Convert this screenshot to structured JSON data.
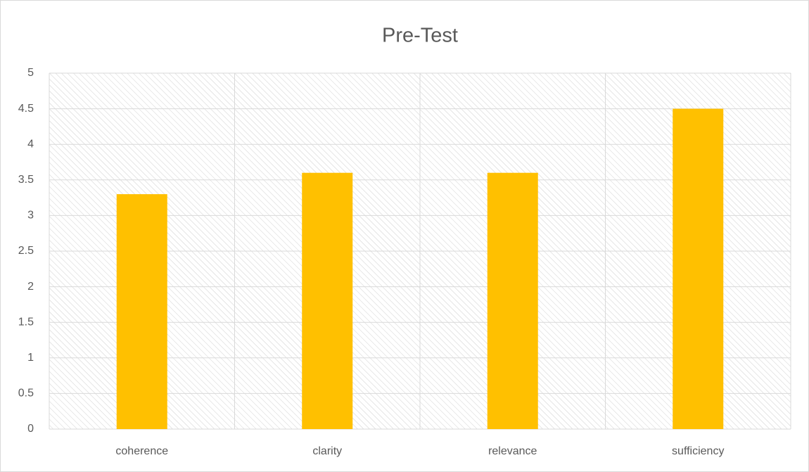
{
  "chart_data": {
    "type": "bar",
    "title": "Pre-Test",
    "categories": [
      "coherence",
      "clarity",
      "relevance",
      "sufficiency"
    ],
    "values": [
      3.3,
      3.6,
      3.6,
      4.5
    ],
    "color": "#ffc000",
    "ylim": [
      0,
      5
    ],
    "yticks": [
      0,
      0.5,
      1,
      1.5,
      2,
      2.5,
      3,
      3.5,
      4,
      4.5,
      5
    ],
    "grid": true
  }
}
